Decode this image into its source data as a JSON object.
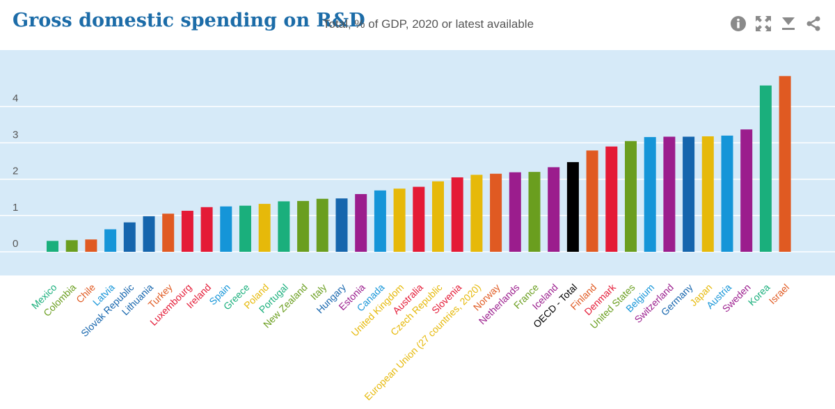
{
  "header": {
    "title": "Gross domestic spending on R&D",
    "subtitle": "Total, % of GDP, 2020 or latest available"
  },
  "toolbar": [
    {
      "name": "info-icon"
    },
    {
      "name": "fullscreen-icon"
    },
    {
      "name": "download-icon"
    },
    {
      "name": "share-icon"
    }
  ],
  "colors": {
    "plot_background": "#d6eaf8",
    "gridline": "#ffffff",
    "axis_text": "#555555",
    "title": "#1c6ca8"
  },
  "chart_data": {
    "type": "bar",
    "title": "Gross domestic spending on R&D",
    "subtitle": "Total, % of GDP, 2020 or latest available",
    "xlabel": "",
    "ylabel": "",
    "ylim": [
      -0.6,
      5.3
    ],
    "yticks": [
      0,
      1,
      2,
      3,
      4
    ],
    "grid": true,
    "categories": [
      "Mexico",
      "Colombia",
      "Chile",
      "Latvia",
      "Slovak Republic",
      "Lithuania",
      "Turkey",
      "Luxembourg",
      "Ireland",
      "Spain",
      "Greece",
      "Poland",
      "Portugal",
      "New Zealand",
      "Italy",
      "Hungary",
      "Estonia",
      "Canada",
      "United Kingdom",
      "Australia",
      "Czech Republic",
      "Slovenia",
      "European Union (27 countries, 2020)",
      "Norway",
      "Netherlands",
      "France",
      "Iceland",
      "OECD - Total",
      "Finland",
      "Denmark",
      "United States",
      "Belgium",
      "Switzerland",
      "Germany",
      "Japan",
      "Austria",
      "Sweden",
      "Korea",
      "Israel"
    ],
    "values": [
      0.3,
      0.32,
      0.34,
      0.62,
      0.81,
      0.98,
      1.05,
      1.13,
      1.23,
      1.25,
      1.27,
      1.32,
      1.39,
      1.4,
      1.46,
      1.47,
      1.59,
      1.69,
      1.74,
      1.79,
      1.94,
      2.05,
      2.12,
      2.15,
      2.19,
      2.2,
      2.33,
      2.47,
      2.79,
      2.9,
      3.05,
      3.16,
      3.17,
      3.17,
      3.18,
      3.2,
      3.37,
      4.58,
      4.84
    ],
    "colors": [
      "#1aaf7c",
      "#6a9e1f",
      "#e05a22",
      "#1595d8",
      "#1565ad",
      "#1565ad",
      "#e05a22",
      "#e41a36",
      "#e41a36",
      "#1595d8",
      "#1aaf7c",
      "#e6b90a",
      "#1aaf7c",
      "#6a9e1f",
      "#6a9e1f",
      "#1565ad",
      "#9b1d8d",
      "#1595d8",
      "#e6b90a",
      "#e41a36",
      "#e6b90a",
      "#e41a36",
      "#e6b90a",
      "#e05a22",
      "#9b1d8d",
      "#6a9e1f",
      "#9b1d8d",
      "#000000",
      "#e05a22",
      "#e41a36",
      "#6a9e1f",
      "#1595d8",
      "#9b1d8d",
      "#1565ad",
      "#e6b90a",
      "#1595d8",
      "#9b1d8d",
      "#1aaf7c",
      "#e05a22"
    ]
  }
}
